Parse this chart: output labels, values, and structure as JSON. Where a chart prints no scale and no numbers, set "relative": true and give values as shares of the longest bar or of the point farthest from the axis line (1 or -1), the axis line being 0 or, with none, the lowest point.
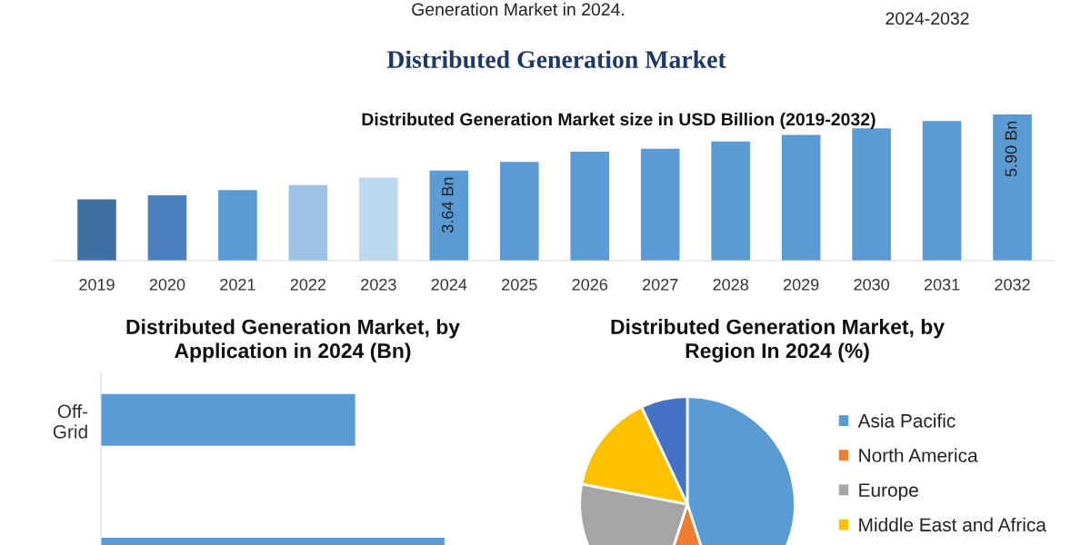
{
  "chart_data": [
    {
      "type": "bar",
      "title": "Distributed Generation Market",
      "subtitle": "Distributed Generation Market size in USD Billion (2019-2032)",
      "annotations": [
        "Generation Market in 2024.",
        "2024-2032"
      ],
      "categories": [
        "2019",
        "2020",
        "2021",
        "2022",
        "2023",
        "2024",
        "2025",
        "2026",
        "2027",
        "2028",
        "2029",
        "2030",
        "2031",
        "2032"
      ],
      "values": [
        2.47,
        2.64,
        2.85,
        3.05,
        3.35,
        3.64,
        3.99,
        4.4,
        4.52,
        4.81,
        5.08,
        5.34,
        5.64,
        5.9
      ],
      "colors": [
        "#3f6fa3",
        "#4a80c0",
        "#5b9bd5",
        "#9dc3e6",
        "#bdd7ee",
        "#5b9bd5",
        "#5b9bd5",
        "#5b9bd5",
        "#5b9bd5",
        "#5b9bd5",
        "#5b9bd5",
        "#5b9bd5",
        "#5b9bd5",
        "#5b9bd5"
      ],
      "value_labels": [
        null,
        null,
        null,
        null,
        null,
        "3.64 Bn",
        null,
        null,
        null,
        null,
        null,
        null,
        null,
        "5.90 Bn"
      ],
      "grid": false,
      "legend": false
    },
    {
      "type": "bar",
      "orientation": "horizontal",
      "title": "Distributed Generation Market, by\nApplication in 2024 (Bn)",
      "categories": [
        "Off-\nGrid",
        null
      ],
      "relative": true,
      "values": [
        0.74,
        1
      ],
      "color": "#5b9bd5",
      "grid": false,
      "legend": false
    },
    {
      "type": "pie",
      "title": "Distributed Generation Market, by\nRegion In 2024 (%)",
      "categories": [
        "Asia Pacific",
        "North America",
        "Europe",
        "Middle East and Africa",
        null
      ],
      "values": [
        45,
        10,
        23,
        15,
        7
      ],
      "colors": [
        "#5b9bd5",
        "#ed7d31",
        "#a5a5a5",
        "#ffc000",
        "#4472c4"
      ],
      "legend": "right"
    }
  ]
}
